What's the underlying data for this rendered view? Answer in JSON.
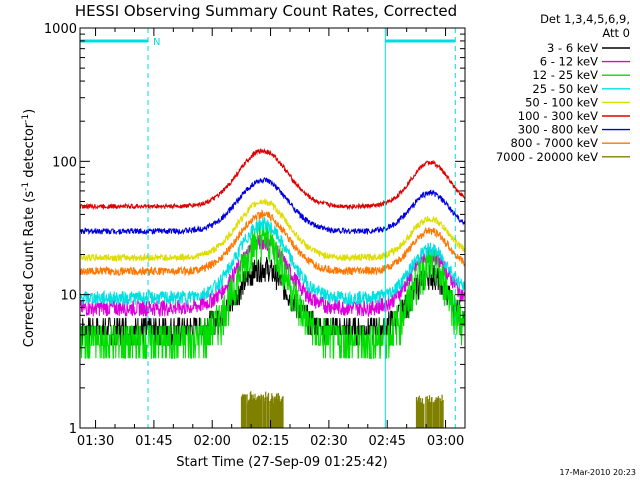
{
  "chart_data": {
    "type": "line",
    "title": "HESSI Observing Summary Count Rates, Corrected",
    "xlabel": "Start Time (27-Sep-09 01:25:42)",
    "ylabel_main": "Corrected Count Rate (s",
    "ylabel_sup1": "-1",
    "ylabel_mid": " detector",
    "ylabel_sup2": "-1",
    "ylabel_end": ")",
    "y_scale": "log",
    "ylim": [
      1,
      1000
    ],
    "xlim_minutes": [
      86,
      185
    ],
    "x_ticks": [
      {
        "m": 90,
        "label": "01:30"
      },
      {
        "m": 105,
        "label": "01:45"
      },
      {
        "m": 120,
        "label": "02:00"
      },
      {
        "m": 135,
        "label": "02:15"
      },
      {
        "m": 150,
        "label": "02:30"
      },
      {
        "m": 165,
        "label": "02:45"
      },
      {
        "m": 180,
        "label": "03:00"
      }
    ],
    "y_ticks": [
      {
        "v": 1,
        "label": "1"
      },
      {
        "v": 10,
        "label": "10"
      },
      {
        "v": 100,
        "label": "100"
      },
      {
        "v": 1000,
        "label": "1000"
      }
    ],
    "legend_header": [
      "Det 1,3,4,5,6,9,",
      "Att 0"
    ],
    "series": [
      {
        "name": "3 - 6 keV",
        "color": "#000000",
        "base": 5.5,
        "p1": 16,
        "p2": 14
      },
      {
        "name": "6 - 12 keV",
        "color": "#dd00dd",
        "base": 8,
        "p1": 25,
        "p2": 20
      },
      {
        "name": "12 - 25 keV",
        "color": "#00dd00",
        "base": 4.5,
        "p1": 27,
        "p2": 17
      },
      {
        "name": "25 - 50 keV",
        "color": "#00e0e0",
        "base": 9.5,
        "p1": 34,
        "p2": 22
      },
      {
        "name": "50 - 100 keV",
        "color": "#dddd00",
        "base": 19,
        "p1": 50,
        "p2": 37
      },
      {
        "name": "100 - 300 keV",
        "color": "#dd0000",
        "base": 46,
        "p1": 120,
        "p2": 98
      },
      {
        "name": "300 - 800 keV",
        "color": "#0000dd",
        "base": 30,
        "p1": 72,
        "p2": 58
      },
      {
        "name": "800 - 7000 keV",
        "color": "#ff7700",
        "base": 15,
        "p1": 40,
        "p2": 30
      },
      {
        "name": "7000 - 20000 keV",
        "color": "#808000",
        "base": null,
        "p1": 1.8,
        "p2": 1.7
      }
    ],
    "peak_times_minutes": [
      133,
      176
    ],
    "markers": [
      {
        "type": "solid-vertical",
        "m": 86,
        "color": "#00dddd"
      },
      {
        "type": "dashed-vertical",
        "m": 103.5,
        "color": "#00dddd"
      },
      {
        "type": "solid-vertical",
        "m": 164.5,
        "color": "#00dddd"
      },
      {
        "type": "dashed-vertical",
        "m": 182.5,
        "color": "#00dddd"
      }
    ],
    "night_bars": [
      {
        "from_m": 86,
        "to_m": 103.5,
        "label": "N",
        "color": "#00dddd"
      },
      {
        "from_m": 164.5,
        "to_m": 182.5,
        "label": "",
        "color": "#00dddd"
      }
    ],
    "footer": "17-Mar-2010 20:23"
  }
}
